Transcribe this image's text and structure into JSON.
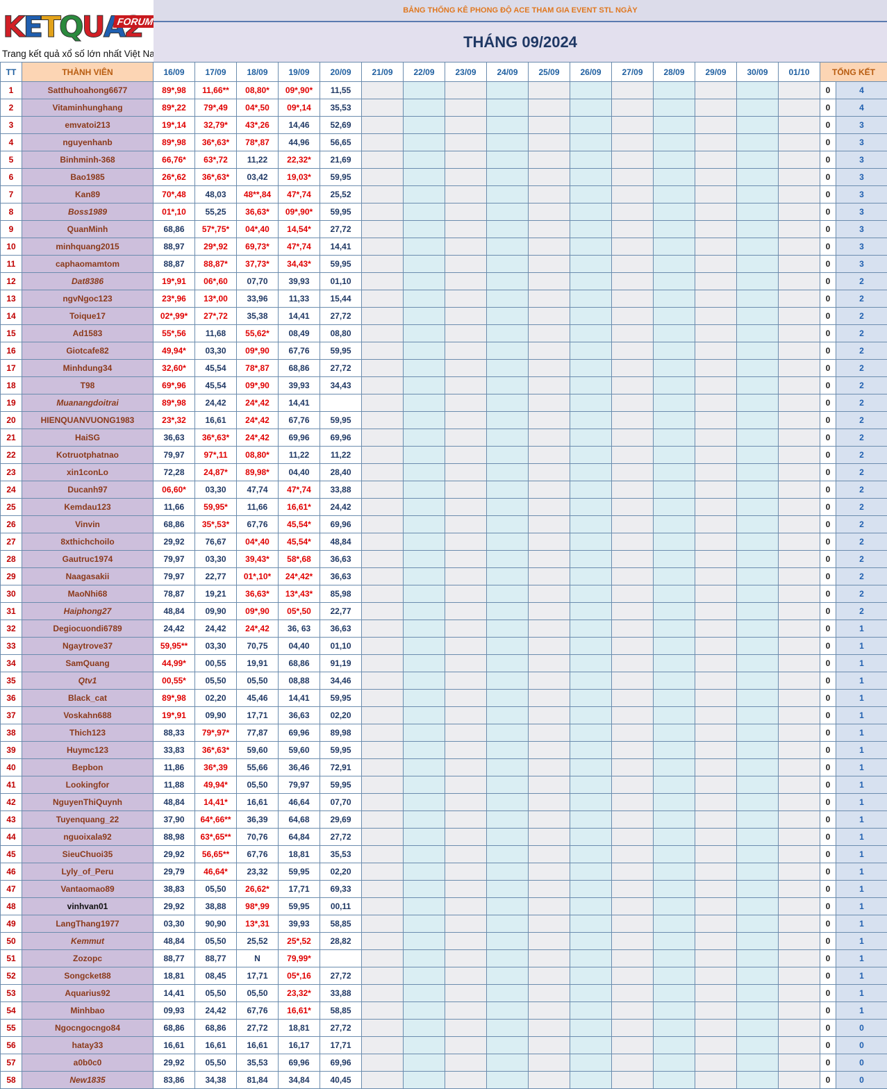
{
  "logo": {
    "brand": "KETQUA2",
    "tag": "FORUM",
    "tagline": "Trang kết quả xổ số lớn nhất Việt Nam"
  },
  "header": {
    "title": "BẢNG THỐNG KÊ PHONG ĐỘ ACE THAM GIA EVENT STL NGÀY",
    "month": "THÁNG 09/2024"
  },
  "columns": {
    "tt": "TT",
    "member": "THÀNH VIÊN",
    "dates": [
      "16/09",
      "17/09",
      "18/09",
      "19/09",
      "20/09",
      "21/09",
      "22/09",
      "23/09",
      "24/09",
      "25/09",
      "26/09",
      "27/09",
      "28/09",
      "29/09",
      "30/09",
      "01/10"
    ],
    "total": "TỔNG KẾT"
  },
  "colors": {
    "hit": "#e00000",
    "miss": "#1f3864",
    "member_bg": "#cdbfdc",
    "header_accent": "#e07820"
  },
  "rows": [
    {
      "tt": "1",
      "name": "Satthuhoahong6677",
      "v": [
        "89*,98",
        "11,66**",
        "08,80*",
        "09*,90*",
        "11,55"
      ],
      "hit": [
        1,
        1,
        1,
        1,
        0
      ],
      "zero": "0",
      "total": "4"
    },
    {
      "tt": "2",
      "name": "Vitaminhunghang",
      "v": [
        "89*,22",
        "79*,49",
        "04*,50",
        "09*,14",
        "35,53"
      ],
      "hit": [
        1,
        1,
        1,
        1,
        0
      ],
      "zero": "0",
      "total": "4"
    },
    {
      "tt": "3",
      "name": "emvatoi213",
      "v": [
        "19*,14",
        "32,79*",
        "43*,26",
        "14,46",
        "52,69"
      ],
      "hit": [
        1,
        1,
        1,
        0,
        0
      ],
      "zero": "0",
      "total": "3"
    },
    {
      "tt": "4",
      "name": "nguyenhanb",
      "v": [
        "89*,98",
        "36*,63*",
        "78*,87",
        "44,96",
        "56,65"
      ],
      "hit": [
        1,
        1,
        1,
        0,
        0
      ],
      "zero": "0",
      "total": "3"
    },
    {
      "tt": "5",
      "name": "Binhminh-368",
      "v": [
        "66,76*",
        "63*,72",
        "11,22",
        "22,32*",
        "21,69"
      ],
      "hit": [
        1,
        1,
        0,
        1,
        0
      ],
      "zero": "0",
      "total": "3"
    },
    {
      "tt": "6",
      "name": "Bao1985",
      "v": [
        "26*,62",
        "36*,63*",
        "03,42",
        "19,03*",
        "59,95"
      ],
      "hit": [
        1,
        1,
        0,
        1,
        0
      ],
      "zero": "0",
      "total": "3"
    },
    {
      "tt": "7",
      "name": "Kan89",
      "v": [
        "70*,48",
        "48,03",
        "48**,84",
        "47*,74",
        "25,52"
      ],
      "hit": [
        1,
        0,
        1,
        1,
        0
      ],
      "zero": "0",
      "total": "3"
    },
    {
      "tt": "8",
      "name": "Boss1989",
      "italic": true,
      "v": [
        "01*,10",
        "55,25",
        "36,63*",
        "09*,90*",
        "59,95"
      ],
      "hit": [
        1,
        0,
        1,
        1,
        0
      ],
      "zero": "0",
      "total": "3"
    },
    {
      "tt": "9",
      "name": "QuanMinh",
      "v": [
        "68,86",
        "57*,75*",
        "04*,40",
        "14,54*",
        "27,72"
      ],
      "hit": [
        0,
        1,
        1,
        1,
        0
      ],
      "zero": "0",
      "total": "3"
    },
    {
      "tt": "10",
      "name": "minhquang2015",
      "v": [
        "88,97",
        "29*,92",
        "69,73*",
        "47*,74",
        "14,41"
      ],
      "hit": [
        0,
        1,
        1,
        1,
        0
      ],
      "zero": "0",
      "total": "3"
    },
    {
      "tt": "11",
      "name": "caphaomamtom",
      "v": [
        "88,87",
        "88,87*",
        "37,73*",
        "34,43*",
        "59,95"
      ],
      "hit": [
        0,
        1,
        1,
        1,
        0
      ],
      "zero": "0",
      "total": "3"
    },
    {
      "tt": "12",
      "name": "Dat8386",
      "italic": true,
      "v": [
        "19*,91",
        "06*,60",
        "07,70",
        "39,93",
        "01,10"
      ],
      "hit": [
        1,
        1,
        0,
        0,
        0
      ],
      "zero": "0",
      "total": "2"
    },
    {
      "tt": "13",
      "name": "ngvNgoc123",
      "v": [
        "23*,96",
        "13*,00",
        "33,96",
        "11,33",
        "15,44"
      ],
      "hit": [
        1,
        1,
        0,
        0,
        0
      ],
      "zero": "0",
      "total": "2"
    },
    {
      "tt": "14",
      "name": "Toique17",
      "v": [
        "02*,99*",
        "27*,72",
        "35,38",
        "14,41",
        "27,72"
      ],
      "hit": [
        1,
        1,
        0,
        0,
        0
      ],
      "zero": "0",
      "total": "2"
    },
    {
      "tt": "15",
      "name": "Ad1583",
      "v": [
        "55*,56",
        "11,68",
        "55,62*",
        "08,49",
        "08,80"
      ],
      "hit": [
        1,
        0,
        1,
        0,
        0
      ],
      "zero": "0",
      "total": "2"
    },
    {
      "tt": "16",
      "name": "Giotcafe82",
      "v": [
        "49,94*",
        "03,30",
        "09*,90",
        "67,76",
        "59,95"
      ],
      "hit": [
        1,
        0,
        1,
        0,
        0
      ],
      "zero": "0",
      "total": "2"
    },
    {
      "tt": "17",
      "name": "Minhdung34",
      "v": [
        "32,60*",
        "45,54",
        "78*,87",
        "68,86",
        "27,72"
      ],
      "hit": [
        1,
        0,
        1,
        0,
        0
      ],
      "zero": "0",
      "total": "2"
    },
    {
      "tt": "18",
      "name": "T98",
      "v": [
        "69*,96",
        "45,54",
        "09*,90",
        "39,93",
        "34,43"
      ],
      "hit": [
        1,
        0,
        1,
        0,
        0
      ],
      "zero": "0",
      "total": "2"
    },
    {
      "tt": "19",
      "name": "Muanangdoitrai",
      "italic": true,
      "v": [
        "89*,98",
        "24,42",
        "24*,42",
        "14,41",
        ""
      ],
      "hit": [
        1,
        0,
        1,
        0,
        0
      ],
      "zero": "0",
      "total": "2"
    },
    {
      "tt": "20",
      "name": "HIENQUANVUONG1983",
      "v": [
        "23*,32",
        "16,61",
        "24*,42",
        "67,76",
        "59,95"
      ],
      "hit": [
        1,
        0,
        1,
        0,
        0
      ],
      "zero": "0",
      "total": "2"
    },
    {
      "tt": "21",
      "name": "HaiSG",
      "v": [
        "36,63",
        "36*,63*",
        "24*,42",
        "69,96",
        "69,96"
      ],
      "hit": [
        0,
        1,
        1,
        0,
        0
      ],
      "zero": "0",
      "total": "2"
    },
    {
      "tt": "22",
      "name": "Kotruotphatnao",
      "v": [
        "79,97",
        "97*,11",
        "08,80*",
        "11,22",
        "11,22"
      ],
      "hit": [
        0,
        1,
        1,
        0,
        0
      ],
      "zero": "0",
      "total": "2"
    },
    {
      "tt": "23",
      "name": "xin1conLo",
      "v": [
        "72,28",
        "24,87*",
        "89,98*",
        "04,40",
        "28,40"
      ],
      "hit": [
        0,
        1,
        1,
        0,
        0
      ],
      "zero": "0",
      "total": "2"
    },
    {
      "tt": "24",
      "name": "Ducanh97",
      "v": [
        "06,60*",
        "03,30",
        "47,74",
        "47*,74",
        "33,88"
      ],
      "hit": [
        1,
        0,
        0,
        1,
        0
      ],
      "zero": "0",
      "total": "2"
    },
    {
      "tt": "25",
      "name": "Kemdau123",
      "v": [
        "11,66",
        "59,95*",
        "11,66",
        "16,61*",
        "24,42"
      ],
      "hit": [
        0,
        1,
        0,
        1,
        0
      ],
      "zero": "0",
      "total": "2"
    },
    {
      "tt": "26",
      "name": "Vinvin",
      "v": [
        "68,86",
        "35*,53*",
        "67,76",
        "45,54*",
        "69,96"
      ],
      "hit": [
        0,
        1,
        0,
        1,
        0
      ],
      "zero": "0",
      "total": "2"
    },
    {
      "tt": "27",
      "name": "8xthichchoilo",
      "v": [
        "29,92",
        "76,67",
        "04*,40",
        "45,54*",
        "48,84"
      ],
      "hit": [
        0,
        0,
        1,
        1,
        0
      ],
      "zero": "0",
      "total": "2"
    },
    {
      "tt": "28",
      "name": "Gautruc1974",
      "v": [
        "79,97",
        "03,30",
        "39,43*",
        "58*,68",
        "36,63"
      ],
      "hit": [
        0,
        0,
        1,
        1,
        0
      ],
      "zero": "0",
      "total": "2"
    },
    {
      "tt": "29",
      "name": "Naagasakii",
      "v": [
        "79,97",
        "22,77",
        "01*,10*",
        "24*,42*",
        "36,63"
      ],
      "hit": [
        0,
        0,
        1,
        1,
        0
      ],
      "zero": "0",
      "total": "2"
    },
    {
      "tt": "30",
      "name": "MaoNhi68",
      "v": [
        "78,87",
        "19,21",
        "36,63*",
        "13*,43*",
        "85,98"
      ],
      "hit": [
        0,
        0,
        1,
        1,
        0
      ],
      "zero": "0",
      "total": "2"
    },
    {
      "tt": "31",
      "name": "Haiphong27",
      "italic": true,
      "v": [
        "48,84",
        "09,90",
        "09*,90",
        "05*,50",
        "22,77"
      ],
      "hit": [
        0,
        0,
        1,
        1,
        0
      ],
      "zero": "0",
      "total": "2"
    },
    {
      "tt": "32",
      "name": "Degiocuondi6789",
      "v": [
        "24,42",
        "24,42",
        "24*,42",
        "36, 63",
        "36,63"
      ],
      "hit": [
        0,
        0,
        1,
        0,
        0
      ],
      "zero": "0",
      "total": "1"
    },
    {
      "tt": "33",
      "name": "Ngaytrove37",
      "v": [
        "59,95**",
        "03,30",
        "70,75",
        "04,40",
        "01,10"
      ],
      "hit": [
        1,
        0,
        0,
        0,
        0
      ],
      "zero": "0",
      "total": "1"
    },
    {
      "tt": "34",
      "name": "SamQuang",
      "v": [
        "44,99*",
        "00,55",
        "19,91",
        "68,86",
        "91,19"
      ],
      "hit": [
        1,
        0,
        0,
        0,
        0
      ],
      "zero": "0",
      "total": "1"
    },
    {
      "tt": "35",
      "name": "Qtv1",
      "italic": true,
      "v": [
        "00,55*",
        "05,50",
        "05,50",
        "08,88",
        "34,46"
      ],
      "hit": [
        1,
        0,
        0,
        0,
        0
      ],
      "zero": "0",
      "total": "1"
    },
    {
      "tt": "36",
      "name": "Black_cat",
      "v": [
        "89*,98",
        "02,20",
        "45,46",
        "14,41",
        "59,95"
      ],
      "hit": [
        1,
        0,
        0,
        0,
        0
      ],
      "zero": "0",
      "total": "1"
    },
    {
      "tt": "37",
      "name": "Voskahn688",
      "v": [
        "19*,91",
        "09,90",
        "17,71",
        "36,63",
        "02,20"
      ],
      "hit": [
        1,
        0,
        0,
        0,
        0
      ],
      "zero": "0",
      "total": "1"
    },
    {
      "tt": "38",
      "name": "Thich123",
      "v": [
        "88,33",
        "79*,97*",
        "77,87",
        "69,96",
        "89,98"
      ],
      "hit": [
        0,
        1,
        0,
        0,
        0
      ],
      "zero": "0",
      "total": "1"
    },
    {
      "tt": "39",
      "name": "Huymc123",
      "v": [
        "33,83",
        "36*,63*",
        "59,60",
        "59,60",
        "59,95"
      ],
      "hit": [
        0,
        1,
        0,
        0,
        0
      ],
      "zero": "0",
      "total": "1"
    },
    {
      "tt": "40",
      "name": "Bepbon",
      "v": [
        "11,86",
        "36*,39",
        "55,66",
        "36,46",
        "72,91"
      ],
      "hit": [
        0,
        1,
        0,
        0,
        0
      ],
      "zero": "0",
      "total": "1"
    },
    {
      "tt": "41",
      "name": "Lookingfor",
      "v": [
        "11,88",
        "49,94*",
        "05,50",
        "79,97",
        "59,95"
      ],
      "hit": [
        0,
        1,
        0,
        0,
        0
      ],
      "zero": "0",
      "total": "1"
    },
    {
      "tt": "42",
      "name": "NguyenThiQuynh",
      "v": [
        "48,84",
        "14,41*",
        "16,61",
        "46,64",
        "07,70"
      ],
      "hit": [
        0,
        1,
        0,
        0,
        0
      ],
      "zero": "0",
      "total": "1"
    },
    {
      "tt": "43",
      "name": "Tuyenquang_22",
      "v": [
        "37,90",
        "64*,66**",
        "36,39",
        "64,68",
        "29,69"
      ],
      "hit": [
        0,
        1,
        0,
        0,
        0
      ],
      "zero": "0",
      "total": "1"
    },
    {
      "tt": "44",
      "name": "nguoixala92",
      "v": [
        "88,98",
        "63*,65**",
        "70,76",
        "64,84",
        "27,72"
      ],
      "hit": [
        0,
        1,
        0,
        0,
        0
      ],
      "zero": "0",
      "total": "1"
    },
    {
      "tt": "45",
      "name": "SieuChuoi35",
      "v": [
        "29,92",
        "56,65**",
        "67,76",
        "18,81",
        "35,53"
      ],
      "hit": [
        0,
        1,
        0,
        0,
        0
      ],
      "zero": "0",
      "total": "1"
    },
    {
      "tt": "46",
      "name": "Lyly_of_Peru",
      "v": [
        "29,79",
        "46,64*",
        "23,32",
        "59,95",
        "02,20"
      ],
      "hit": [
        0,
        1,
        0,
        0,
        0
      ],
      "zero": "0",
      "total": "1"
    },
    {
      "tt": "47",
      "name": "Vantaomao89",
      "v": [
        "38,83",
        "05,50",
        "26,62*",
        "17,71",
        "69,33"
      ],
      "hit": [
        0,
        0,
        1,
        0,
        0
      ],
      "zero": "0",
      "total": "1"
    },
    {
      "tt": "48",
      "name": "vinhvan01",
      "dark": true,
      "v": [
        "29,92",
        "38,88",
        "98*,99",
        "59,95",
        "00,11"
      ],
      "hit": [
        0,
        0,
        1,
        0,
        0
      ],
      "zero": "0",
      "total": "1"
    },
    {
      "tt": "49",
      "name": "LangThang1977",
      "v": [
        "03,30",
        "90,90",
        "13*,31",
        "39,93",
        "58,85"
      ],
      "hit": [
        0,
        0,
        1,
        0,
        0
      ],
      "zero": "0",
      "total": "1"
    },
    {
      "tt": "50",
      "name": "Kemmut",
      "italic": true,
      "v": [
        "48,84",
        "05,50",
        "25,52",
        "25*,52",
        "28,82"
      ],
      "hit": [
        0,
        0,
        0,
        1,
        0
      ],
      "zero": "0",
      "total": "1"
    },
    {
      "tt": "51",
      "name": "Zozopc",
      "v": [
        "88,77",
        "88,77",
        "N",
        "79,99*",
        ""
      ],
      "hit": [
        0,
        0,
        0,
        1,
        0
      ],
      "zero": "0",
      "total": "1"
    },
    {
      "tt": "52",
      "name": "Songcket88",
      "v": [
        "18,81",
        "08,45",
        "17,71",
        "05*,16",
        "27,72"
      ],
      "hit": [
        0,
        0,
        0,
        1,
        0
      ],
      "zero": "0",
      "total": "1"
    },
    {
      "tt": "53",
      "name": "Aquarius92",
      "v": [
        "14,41",
        "05,50",
        "05,50",
        "23,32*",
        "33,88"
      ],
      "hit": [
        0,
        0,
        0,
        1,
        0
      ],
      "zero": "0",
      "total": "1"
    },
    {
      "tt": "54",
      "name": "Minhbao",
      "v": [
        "09,93",
        "24,42",
        "67,76",
        "16,61*",
        "58,85"
      ],
      "hit": [
        0,
        0,
        0,
        1,
        0
      ],
      "zero": "0",
      "total": "1"
    },
    {
      "tt": "55",
      "name": "Ngocngocngo84",
      "v": [
        "68,86",
        "68,86",
        "27,72",
        "18,81",
        "27,72"
      ],
      "hit": [
        0,
        0,
        0,
        0,
        0
      ],
      "zero": "0",
      "total": "0"
    },
    {
      "tt": "56",
      "name": "hatay33",
      "v": [
        "16,61",
        "16,61",
        "16,61",
        "16,17",
        "17,71"
      ],
      "hit": [
        0,
        0,
        0,
        0,
        0
      ],
      "zero": "0",
      "total": "0"
    },
    {
      "tt": "57",
      "name": "a0b0c0",
      "v": [
        "29,92",
        "05,50",
        "35,53",
        "69,96",
        "69,96"
      ],
      "hit": [
        0,
        0,
        0,
        0,
        0
      ],
      "zero": "0",
      "total": "0"
    },
    {
      "tt": "58",
      "name": "New1835",
      "italic": true,
      "v": [
        "83,86",
        "34,38",
        "81,84",
        "34,84",
        "40,45"
      ],
      "hit": [
        0,
        0,
        0,
        0,
        0
      ],
      "zero": "0",
      "total": "0"
    }
  ]
}
